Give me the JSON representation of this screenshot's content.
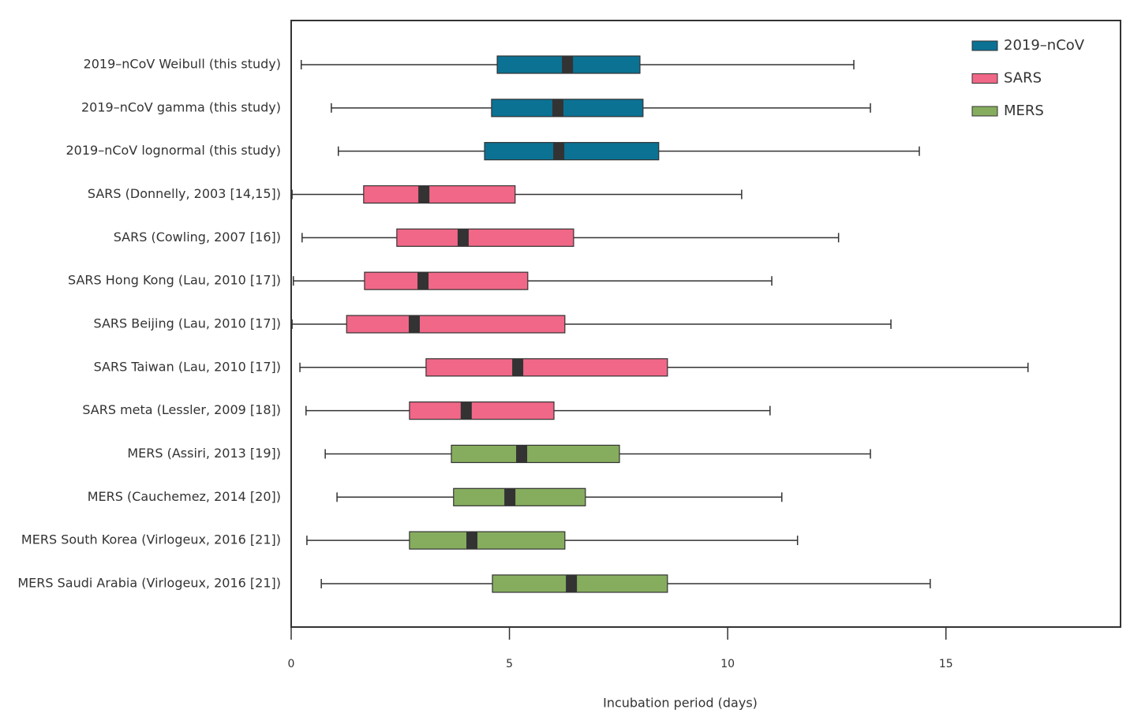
{
  "chart_data": {
    "type": "boxplot",
    "x_label": "Incubation period (days)",
    "xlim": [
      0,
      19
    ],
    "xticks": [
      0,
      5,
      10,
      15
    ],
    "series": [
      {
        "name": "2019–nCoV",
        "color": "#0b7294",
        "categories": [
          "2019–nCoV Weibull (this study)",
          "2019–nCoV gamma (this study)",
          "2019–nCoV lognormal (this study)"
        ],
        "whisker_low": [
          0.23,
          0.92,
          1.08
        ],
        "q1": [
          4.72,
          4.59,
          4.43
        ],
        "median": [
          6.33,
          6.11,
          6.13
        ],
        "q3": [
          7.99,
          8.06,
          8.42
        ],
        "whisker_high": [
          12.89,
          13.27,
          14.39
        ]
      },
      {
        "name": "SARS",
        "color": "#f06787",
        "categories": [
          "SARS (Donnelly, 2003 [14,15])",
          "SARS (Cowling, 2007 [16])",
          "SARS Hong Kong (Lau, 2010 [17])",
          "SARS Beijing (Lau, 2010 [17])",
          "SARS Taiwan (Lau, 2010 [17])",
          "SARS meta (Lessler, 2009 [18])"
        ],
        "whisker_low": [
          0.02,
          0.25,
          0.05,
          0.02,
          0.2,
          0.34
        ],
        "q1": [
          1.66,
          2.42,
          1.68,
          1.27,
          3.09,
          2.71
        ],
        "median": [
          3.04,
          3.94,
          3.02,
          2.82,
          5.19,
          4.01
        ],
        "q3": [
          5.13,
          6.47,
          5.42,
          6.27,
          8.62,
          6.02
        ],
        "whisker_high": [
          10.32,
          12.54,
          11.01,
          13.74,
          16.88,
          10.97
        ]
      },
      {
        "name": "MERS",
        "color": "#86ad5e",
        "categories": [
          "MERS (Assiri, 2013 [19])",
          "MERS (Cauchemez, 2014 [20])",
          "MERS South Korea (Virlogeux, 2016 [21])",
          "MERS Saudi Arabia (Virlogeux, 2016 [21])"
        ],
        "whisker_low": [
          0.78,
          1.05,
          0.36,
          0.69
        ],
        "q1": [
          3.67,
          3.72,
          2.71,
          4.61
        ],
        "median": [
          5.28,
          5.01,
          4.14,
          6.42
        ],
        "q3": [
          7.52,
          6.74,
          6.27,
          8.62
        ],
        "whisker_high": [
          13.27,
          11.24,
          11.6,
          14.64
        ]
      }
    ]
  }
}
